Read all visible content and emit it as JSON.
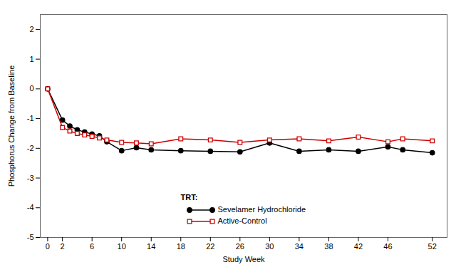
{
  "chart_data": {
    "type": "line",
    "xlabel": "Study Week",
    "ylabel": "Phosphorus Change from Baseline",
    "x": [
      0,
      2,
      3,
      4,
      5,
      6,
      7,
      8,
      10,
      12,
      14,
      18,
      22,
      26,
      30,
      34,
      38,
      42,
      46,
      48,
      52
    ],
    "xlim": [
      -1,
      54
    ],
    "xticks": [
      0,
      2,
      6,
      10,
      14,
      18,
      22,
      26,
      30,
      34,
      38,
      42,
      46,
      52
    ],
    "ylim": [
      -5,
      2.5
    ],
    "yticks": [
      -5,
      -4,
      -3,
      -2,
      -1,
      0,
      1,
      2
    ],
    "grid": false,
    "legend": "lower center",
    "legend_title": "TRT:",
    "series": [
      {
        "name": "Sevelamer Hydrochloride",
        "color": "#000000",
        "marker": "circle",
        "line_style": "solid",
        "values": [
          0.0,
          -1.05,
          -1.25,
          -1.38,
          -1.45,
          -1.52,
          -1.58,
          -1.78,
          -2.08,
          -1.98,
          -2.05,
          -2.08,
          -2.1,
          -2.12,
          -1.82,
          -2.1,
          -2.05,
          -2.1,
          -1.95,
          -2.05,
          -2.15
        ]
      },
      {
        "name": "Active-Control",
        "color": "#cc0000",
        "marker": "open square",
        "line_style": "solid",
        "values": [
          0.0,
          -1.3,
          -1.42,
          -1.5,
          -1.55,
          -1.6,
          -1.65,
          -1.72,
          -1.8,
          -1.82,
          -1.85,
          -1.68,
          -1.72,
          -1.8,
          -1.72,
          -1.68,
          -1.75,
          -1.62,
          -1.78,
          -1.68,
          -1.75
        ]
      }
    ]
  }
}
